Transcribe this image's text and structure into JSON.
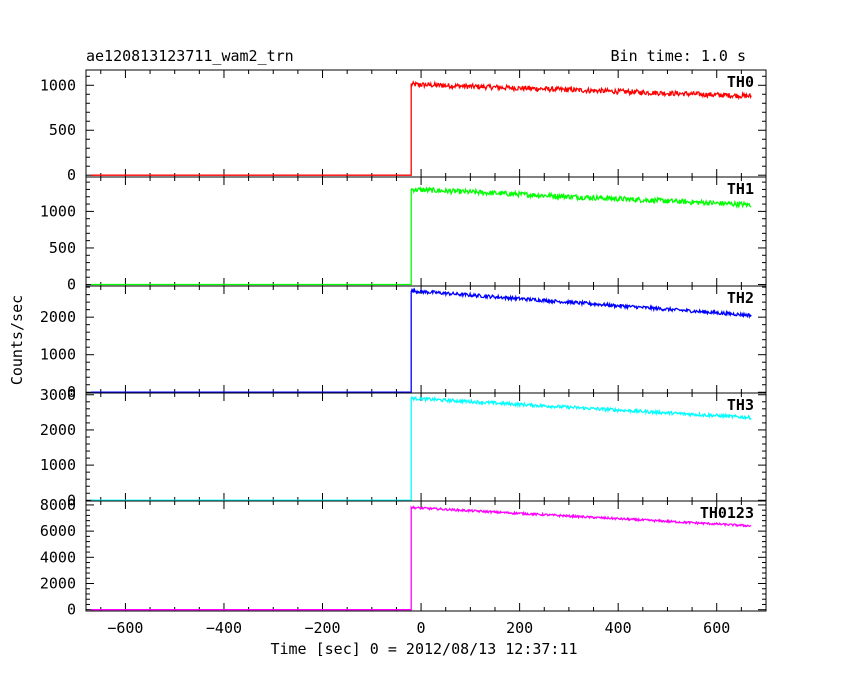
{
  "header": {
    "title": "ae120813123711_wam2_trn",
    "bin_time": "Bin time: 1.0 s"
  },
  "axes": {
    "xlabel": "Time [sec] 0 = 2012/08/13 12:37:11",
    "ylabel": "Counts/sec"
  },
  "chart_data": {
    "type": "line",
    "xlim": [
      -680,
      700
    ],
    "x_ticks": [
      -600,
      -400,
      -200,
      0,
      200,
      400,
      600
    ],
    "x_tick_labels": [
      "−600",
      "−400",
      "−200",
      "0",
      "200",
      "400",
      "600"
    ],
    "step_time": -20,
    "x_end": 670,
    "panels": [
      {
        "name": "TH0",
        "color": "#ff0000",
        "ylim": [
          -20,
          1170
        ],
        "y_ticks": [
          0,
          500,
          1000
        ],
        "y_tick_labels": [
          "0",
          "500",
          "1000"
        ],
        "pre_level": 0,
        "post_start": 1010,
        "post_end": 880,
        "noise": 28
      },
      {
        "name": "TH1",
        "color": "#00ff00",
        "ylim": [
          -20,
          1470
        ],
        "y_ticks": [
          0,
          500,
          1000
        ],
        "y_tick_labels": [
          "0",
          "500",
          "1000"
        ],
        "pre_level": 0,
        "post_start": 1300,
        "post_end": 1090,
        "noise": 35
      },
      {
        "name": "TH2",
        "color": "#0000ff",
        "ylim": [
          -20,
          2830
        ],
        "y_ticks": [
          0,
          1000,
          2000
        ],
        "y_tick_labels": [
          "0",
          "1000",
          "2000"
        ],
        "pre_level": 0,
        "post_start": 2700,
        "post_end": 2050,
        "noise": 45
      },
      {
        "name": "TH3",
        "color": "#00ffff",
        "ylim": [
          -20,
          3050
        ],
        "y_ticks": [
          0,
          1000,
          2000,
          3000
        ],
        "y_tick_labels": [
          "0",
          "1000",
          "2000",
          "3000"
        ],
        "pre_level": 0,
        "post_start": 2900,
        "post_end": 2350,
        "noise": 45
      },
      {
        "name": "TH0123",
        "color": "#ff00ff",
        "ylim": [
          -100,
          8300
        ],
        "y_ticks": [
          0,
          2000,
          4000,
          6000,
          8000
        ],
        "y_tick_labels": [
          "0",
          "2000",
          "4000",
          "6000",
          "8000"
        ],
        "pre_level": 0,
        "post_start": 7800,
        "post_end": 6400,
        "noise": 80
      }
    ]
  }
}
